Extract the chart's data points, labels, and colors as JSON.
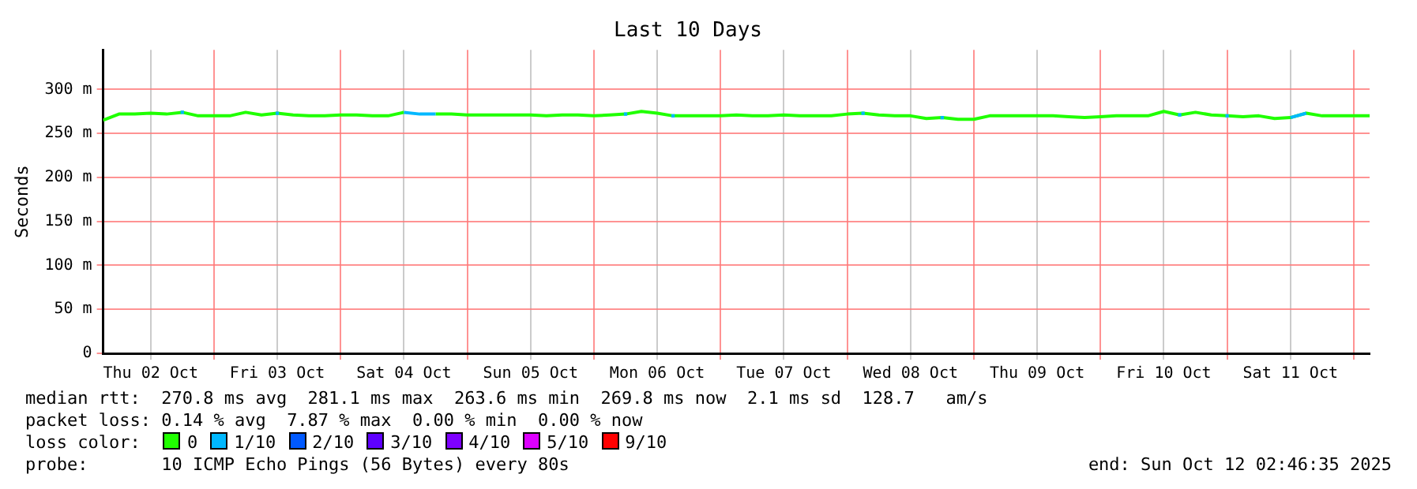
{
  "chart_data": {
    "type": "line",
    "title": "Last 10 Days",
    "ylabel": "Seconds",
    "x": [
      "2025-10-02T03:00",
      "2025-10-02T06:00",
      "2025-10-02T09:00",
      "2025-10-02T12:00",
      "2025-10-02T15:00",
      "2025-10-02T18:00",
      "2025-10-02T21:00",
      "2025-10-03T00:00",
      "2025-10-03T03:00",
      "2025-10-03T06:00",
      "2025-10-03T09:00",
      "2025-10-03T12:00",
      "2025-10-03T15:00",
      "2025-10-03T18:00",
      "2025-10-03T21:00",
      "2025-10-04T00:00",
      "2025-10-04T03:00",
      "2025-10-04T06:00",
      "2025-10-04T09:00",
      "2025-10-04T12:00",
      "2025-10-04T15:00",
      "2025-10-04T18:00",
      "2025-10-04T21:00",
      "2025-10-05T00:00",
      "2025-10-05T03:00",
      "2025-10-05T06:00",
      "2025-10-05T09:00",
      "2025-10-05T12:00",
      "2025-10-05T15:00",
      "2025-10-05T18:00",
      "2025-10-05T21:00",
      "2025-10-06T00:00",
      "2025-10-06T03:00",
      "2025-10-06T06:00",
      "2025-10-06T09:00",
      "2025-10-06T12:00",
      "2025-10-06T15:00",
      "2025-10-06T18:00",
      "2025-10-06T21:00",
      "2025-10-07T00:00",
      "2025-10-07T03:00",
      "2025-10-07T06:00",
      "2025-10-07T09:00",
      "2025-10-07T12:00",
      "2025-10-07T15:00",
      "2025-10-07T18:00",
      "2025-10-07T21:00",
      "2025-10-08T00:00",
      "2025-10-08T03:00",
      "2025-10-08T06:00",
      "2025-10-08T09:00",
      "2025-10-08T12:00",
      "2025-10-08T15:00",
      "2025-10-08T18:00",
      "2025-10-08T21:00",
      "2025-10-09T00:00",
      "2025-10-09T03:00",
      "2025-10-09T06:00",
      "2025-10-09T09:00",
      "2025-10-09T12:00",
      "2025-10-09T15:00",
      "2025-10-09T18:00",
      "2025-10-09T21:00",
      "2025-10-10T00:00",
      "2025-10-10T03:00",
      "2025-10-10T06:00",
      "2025-10-10T09:00",
      "2025-10-10T12:00",
      "2025-10-10T15:00",
      "2025-10-10T18:00",
      "2025-10-10T21:00",
      "2025-10-11T00:00",
      "2025-10-11T03:00",
      "2025-10-11T06:00",
      "2025-10-11T09:00",
      "2025-10-11T12:00",
      "2025-10-11T15:00",
      "2025-10-11T18:00",
      "2025-10-11T21:00",
      "2025-10-12T00:00",
      "2025-10-12T03:00"
    ],
    "series": [
      {
        "name": "0",
        "color": "#20ff00",
        "values": [
          265,
          272,
          272,
          273,
          272,
          274,
          270,
          270,
          270,
          274,
          271,
          273,
          271,
          270,
          270,
          271,
          271,
          270,
          270,
          274,
          null,
          272,
          272,
          271,
          271,
          271,
          271,
          271,
          270,
          271,
          271,
          270,
          271,
          272,
          275,
          273,
          270,
          270,
          270,
          270,
          271,
          270,
          270,
          271,
          270,
          270,
          270,
          272,
          273,
          271,
          270,
          270,
          267,
          268,
          266,
          266,
          270,
          270,
          270,
          270,
          270,
          269,
          268,
          269,
          270,
          270,
          270,
          275,
          271,
          274,
          271,
          270,
          269,
          270,
          267,
          268,
          273,
          270,
          270,
          270,
          270
        ]
      },
      {
        "name": "1/10",
        "color": "#00b8ff",
        "values": [
          null,
          null,
          null,
          null,
          null,
          274,
          null,
          null,
          null,
          null,
          null,
          273,
          null,
          null,
          null,
          null,
          null,
          null,
          null,
          274,
          272,
          272,
          null,
          null,
          null,
          null,
          null,
          null,
          null,
          null,
          null,
          null,
          null,
          272,
          null,
          null,
          270,
          null,
          null,
          null,
          null,
          null,
          null,
          null,
          null,
          null,
          null,
          null,
          273,
          null,
          null,
          null,
          null,
          268,
          null,
          null,
          null,
          null,
          null,
          null,
          null,
          null,
          null,
          null,
          null,
          null,
          null,
          null,
          271,
          null,
          null,
          270,
          null,
          null,
          null,
          268,
          273,
          null,
          null,
          null,
          null
        ]
      },
      {
        "name": "2/10",
        "color": "#0059ff",
        "values": [
          null,
          null,
          null,
          null,
          null,
          null,
          null,
          null,
          null,
          null,
          null,
          null,
          null,
          null,
          null,
          null,
          null,
          null,
          null,
          null,
          null,
          null,
          null,
          null,
          null,
          null,
          null,
          null,
          null,
          null,
          null,
          null,
          null,
          null,
          null,
          null,
          null,
          null,
          null,
          null,
          null,
          null,
          null,
          null,
          null,
          null,
          null,
          null,
          null,
          null,
          null,
          null,
          null,
          null,
          null,
          null,
          null,
          null,
          null,
          null,
          null,
          null,
          null,
          null,
          null,
          null,
          null,
          null,
          null,
          null,
          null,
          null,
          null,
          null,
          null,
          null,
          null,
          null,
          null,
          null,
          null
        ]
      },
      {
        "name": "3/10",
        "color": "#5e00ff",
        "values": [
          null,
          null,
          null,
          null,
          null,
          null,
          null,
          null,
          null,
          null,
          null,
          null,
          null,
          null,
          null,
          null,
          null,
          null,
          null,
          null,
          null,
          null,
          null,
          null,
          null,
          null,
          null,
          null,
          null,
          null,
          null,
          null,
          null,
          null,
          null,
          null,
          null,
          null,
          null,
          null,
          null,
          null,
          null,
          null,
          null,
          null,
          null,
          null,
          null,
          null,
          null,
          null,
          null,
          null,
          null,
          null,
          null,
          null,
          null,
          null,
          null,
          null,
          null,
          null,
          null,
          null,
          null,
          null,
          null,
          null,
          null,
          null,
          null,
          null,
          null,
          null,
          null,
          null,
          null,
          null,
          null
        ]
      },
      {
        "name": "4/10",
        "color": "#7e00ff",
        "values": [
          null,
          null,
          null,
          null,
          null,
          null,
          null,
          null,
          null,
          null,
          null,
          null,
          null,
          null,
          null,
          null,
          null,
          null,
          null,
          null,
          null,
          null,
          null,
          null,
          null,
          null,
          null,
          null,
          null,
          null,
          null,
          null,
          null,
          null,
          null,
          null,
          null,
          null,
          null,
          null,
          null,
          null,
          null,
          null,
          null,
          null,
          null,
          null,
          null,
          null,
          null,
          null,
          null,
          null,
          null,
          null,
          null,
          null,
          null,
          null,
          null,
          null,
          null,
          null,
          null,
          null,
          null,
          null,
          null,
          null,
          null,
          null,
          null,
          null,
          null,
          null,
          null,
          null,
          null,
          null,
          null
        ]
      },
      {
        "name": "5/10",
        "color": "#dd00ff",
        "values": [
          null,
          null,
          null,
          null,
          null,
          null,
          null,
          null,
          null,
          null,
          null,
          null,
          null,
          null,
          null,
          null,
          null,
          null,
          null,
          null,
          null,
          null,
          null,
          null,
          null,
          null,
          null,
          null,
          null,
          null,
          null,
          null,
          null,
          null,
          null,
          null,
          null,
          null,
          null,
          null,
          null,
          null,
          null,
          null,
          null,
          null,
          null,
          null,
          null,
          null,
          null,
          null,
          null,
          null,
          null,
          null,
          null,
          null,
          null,
          null,
          null,
          null,
          null,
          null,
          null,
          null,
          null,
          null,
          null,
          null,
          null,
          null,
          null,
          null,
          null,
          null,
          null,
          null,
          null,
          null,
          null
        ]
      },
      {
        "name": "9/10",
        "color": "#ff0000",
        "values": [
          null,
          null,
          null,
          null,
          null,
          null,
          null,
          null,
          null,
          null,
          null,
          null,
          null,
          null,
          null,
          null,
          null,
          null,
          null,
          null,
          null,
          null,
          null,
          null,
          null,
          null,
          null,
          null,
          null,
          null,
          null,
          null,
          null,
          null,
          null,
          null,
          null,
          null,
          null,
          null,
          null,
          null,
          null,
          null,
          null,
          null,
          null,
          null,
          null,
          null,
          null,
          null,
          null,
          null,
          null,
          null,
          null,
          null,
          null,
          null,
          null,
          null,
          null,
          null,
          null,
          null,
          null,
          null,
          null,
          null,
          null,
          null,
          null,
          null,
          null,
          null,
          null,
          null,
          null,
          null,
          null
        ]
      }
    ],
    "xlim": [
      "2025-10-02T03:00",
      "2025-10-12T03:00"
    ],
    "xticks": [
      {
        "value": "2025-10-02T12:00",
        "label": "Thu 02 Oct"
      },
      {
        "value": "2025-10-03T00:00",
        "label": null
      },
      {
        "value": "2025-10-03T12:00",
        "label": "Fri 03 Oct"
      },
      {
        "value": "2025-10-04T00:00",
        "label": null
      },
      {
        "value": "2025-10-04T12:00",
        "label": "Sat 04 Oct"
      },
      {
        "value": "2025-10-05T00:00",
        "label": null
      },
      {
        "value": "2025-10-05T12:00",
        "label": "Sun 05 Oct"
      },
      {
        "value": "2025-10-06T00:00",
        "label": null
      },
      {
        "value": "2025-10-06T12:00",
        "label": "Mon 06 Oct"
      },
      {
        "value": "2025-10-07T00:00",
        "label": null
      },
      {
        "value": "2025-10-07T12:00",
        "label": "Tue 07 Oct"
      },
      {
        "value": "2025-10-08T00:00",
        "label": null
      },
      {
        "value": "2025-10-08T12:00",
        "label": "Wed 08 Oct"
      },
      {
        "value": "2025-10-09T00:00",
        "label": null
      },
      {
        "value": "2025-10-09T12:00",
        "label": "Thu 09 Oct"
      },
      {
        "value": "2025-10-10T00:00",
        "label": null
      },
      {
        "value": "2025-10-10T12:00",
        "label": "Fri 10 Oct"
      },
      {
        "value": "2025-10-11T00:00",
        "label": null
      },
      {
        "value": "2025-10-11T12:00",
        "label": "Sat 11 Oct"
      },
      {
        "value": "2025-10-12T00:00",
        "label": null
      }
    ],
    "ylim": [
      0,
      345
    ],
    "yticks": [
      0,
      {
        "value": 50,
        "label": "50 m"
      },
      {
        "value": 100,
        "label": "100 m"
      },
      {
        "value": 150,
        "label": "150 m"
      },
      {
        "value": 200,
        "label": "200 m"
      },
      {
        "value": 250,
        "label": "250 m"
      },
      {
        "value": 300,
        "label": "300 m"
      }
    ],
    "grid": true,
    "legend": "bottom",
    "legend_title": "loss color:",
    "line_style": "solid",
    "annotations": [
      "median rtt:  270.8 ms avg  281.1 ms max  263.6 ms min  269.8 ms now  2.1 ms sd  128.7   am/s",
      "packet loss: 0.14 % avg  7.87 % max  0.00 % min  0.00 % now",
      "probe:       10 ICMP Echo Pings (56 Bytes) every 80s",
      "end: Sun Oct 12 02:46:35 2025"
    ]
  }
}
